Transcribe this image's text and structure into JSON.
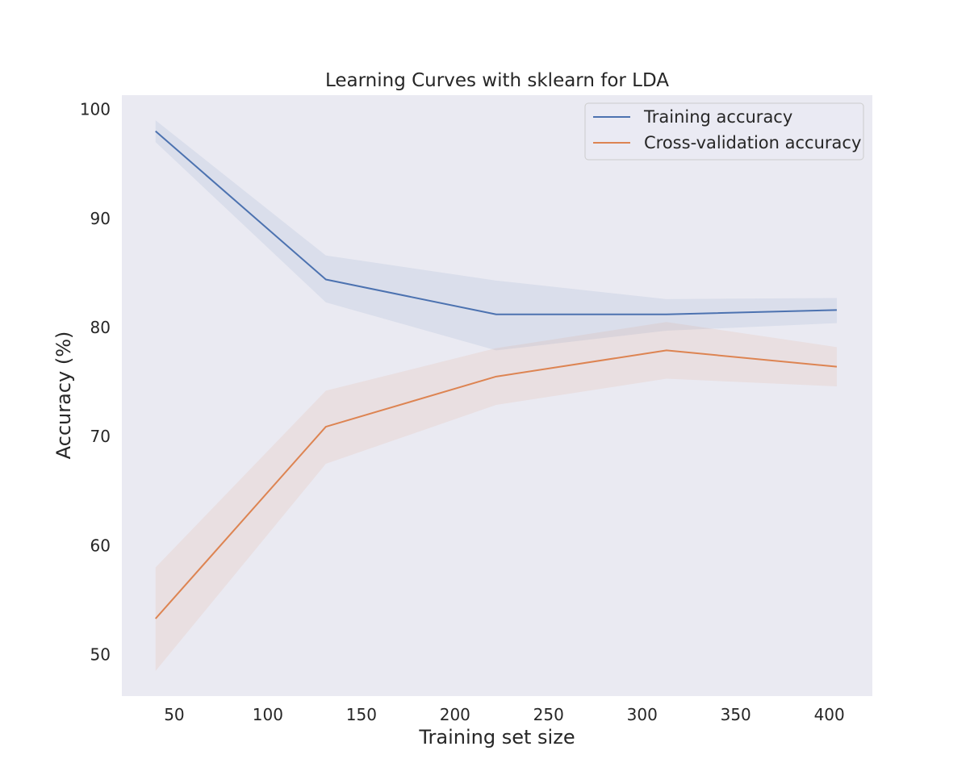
{
  "chart_data": {
    "type": "line",
    "title": "Learning Curves with sklearn for LDA",
    "xlabel": "Training set size",
    "ylabel": "Accuracy (%)",
    "xlim": [
      22,
      423
    ],
    "ylim": [
      46.2,
      101.3
    ],
    "xticks": [
      50,
      100,
      150,
      200,
      250,
      300,
      350,
      400
    ],
    "yticks": [
      50,
      60,
      70,
      80,
      90,
      100
    ],
    "grid": false,
    "legend_position": "upper-right",
    "x": [
      40,
      131,
      222,
      313,
      404
    ],
    "series": [
      {
        "name": "Training accuracy",
        "color": "#4c72b0",
        "fill_color": "#4c72b0",
        "values": [
          98.0,
          84.4,
          81.2,
          81.2,
          81.6
        ],
        "upper": [
          99.0,
          86.6,
          84.3,
          82.6,
          82.7
        ],
        "lower": [
          97.0,
          82.3,
          77.9,
          79.7,
          80.4
        ]
      },
      {
        "name": "Cross-validation accuracy",
        "color": "#dd8452",
        "fill_color": "#dd8452",
        "values": [
          53.3,
          70.9,
          75.5,
          77.9,
          76.4
        ],
        "upper": [
          58.0,
          74.2,
          78.1,
          80.5,
          78.2
        ],
        "lower": [
          48.5,
          67.5,
          72.9,
          75.3,
          74.6
        ]
      }
    ]
  }
}
